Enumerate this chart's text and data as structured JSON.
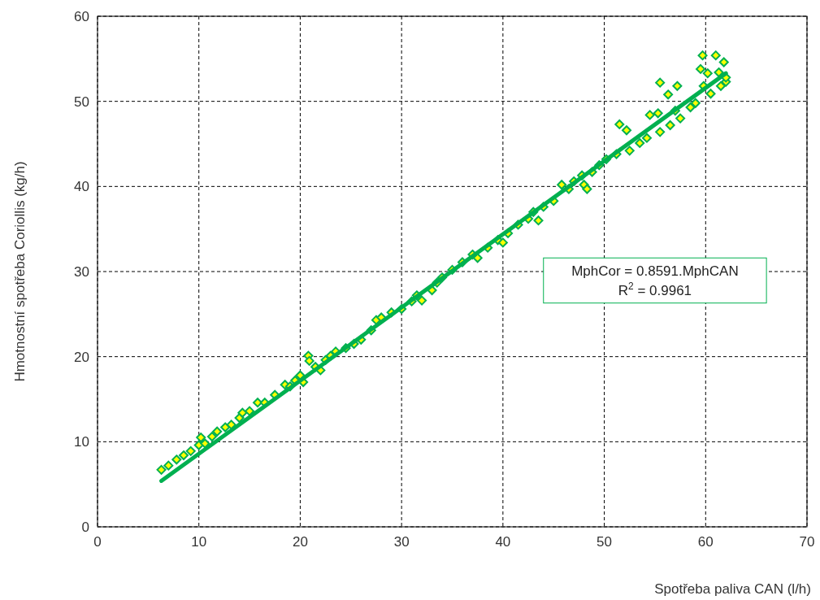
{
  "chart_data": {
    "type": "scatter",
    "xlabel": "Spotřeba paliva CAN (l/h)",
    "ylabel": "Hmotnostní spotřeba Coriollis (kg/h)",
    "xlim": [
      0,
      70
    ],
    "ylim": [
      0,
      60
    ],
    "xticks": [
      0,
      10,
      20,
      30,
      40,
      50,
      60,
      70
    ],
    "yticks": [
      0,
      10,
      20,
      30,
      40,
      50,
      60
    ],
    "grid": true,
    "marker": "diamond",
    "annotations": [
      "MphCor = 0.8591.MphCAN",
      "R$^{2}$ = 0.9961"
    ],
    "series": [
      {
        "color": "#ffff00",
        "x": [
          6.3,
          7,
          7.8,
          8.5,
          9.2,
          10.2,
          10,
          10.6,
          11.3,
          11.8,
          12.6,
          13.2,
          14,
          14.3,
          15,
          15.8,
          16.5,
          17.5,
          18.5,
          19,
          19.5,
          20,
          20.3,
          20.8,
          20.9,
          21.5,
          22,
          22.5,
          23,
          23.5,
          24.5,
          25.3,
          26,
          27,
          27.5,
          28,
          29,
          30,
          31,
          31.5,
          32,
          33,
          33.5,
          34,
          35,
          36,
          37,
          37.5,
          38.5,
          39.5,
          40,
          40.5,
          41.5,
          42.5,
          43,
          43.5,
          44,
          45,
          45.8,
          46.5,
          47,
          47.8,
          48,
          48.3,
          48.8,
          49.5,
          50.2,
          51.2,
          51.5,
          52.2,
          52.5,
          53.5,
          54.2,
          54.5,
          55.3,
          55.5,
          55.5,
          56.3,
          56.5,
          57,
          57.2,
          57.5,
          58.5,
          59,
          59.5,
          59.7,
          59.8,
          60.2,
          60.5,
          61,
          61.3,
          61.5,
          61.8,
          62,
          62
        ],
        "values": [
          6.7,
          7.2,
          7.9,
          8.4,
          8.9,
          10.5,
          9.6,
          9.8,
          10.6,
          11.2,
          11.7,
          12,
          12.8,
          13.4,
          13.6,
          14.6,
          14.6,
          15.5,
          16.7,
          16.5,
          17.2,
          17.8,
          17,
          20.1,
          19.5,
          18.8,
          18.4,
          19.6,
          20.1,
          20.6,
          21,
          21.5,
          22,
          23.1,
          24.3,
          24.6,
          25.2,
          25.6,
          26.5,
          27.2,
          26.6,
          27.8,
          28.7,
          29.3,
          30.2,
          31.1,
          32,
          31.6,
          32.8,
          33.7,
          33.4,
          34.5,
          35.5,
          36.2,
          37,
          36,
          37.6,
          38.3,
          40.2,
          39.7,
          40.6,
          41.3,
          40.2,
          39.7,
          41.7,
          42.5,
          43.2,
          43.8,
          47.3,
          46.6,
          44.2,
          45.1,
          45.7,
          48.4,
          48.6,
          52.2,
          46.4,
          50.8,
          47.2,
          48.9,
          51.8,
          48,
          49.3,
          49.8,
          53.8,
          55.4,
          51.8,
          53.3,
          50.9,
          55.4,
          53.4,
          51.8,
          54.6,
          52.3,
          52.8
        ]
      },
      {
        "type": "line",
        "marker": "none",
        "color": "#00b050",
        "x": [
          6.3,
          62
        ],
        "values": [
          5.4,
          53.3
        ]
      }
    ]
  }
}
